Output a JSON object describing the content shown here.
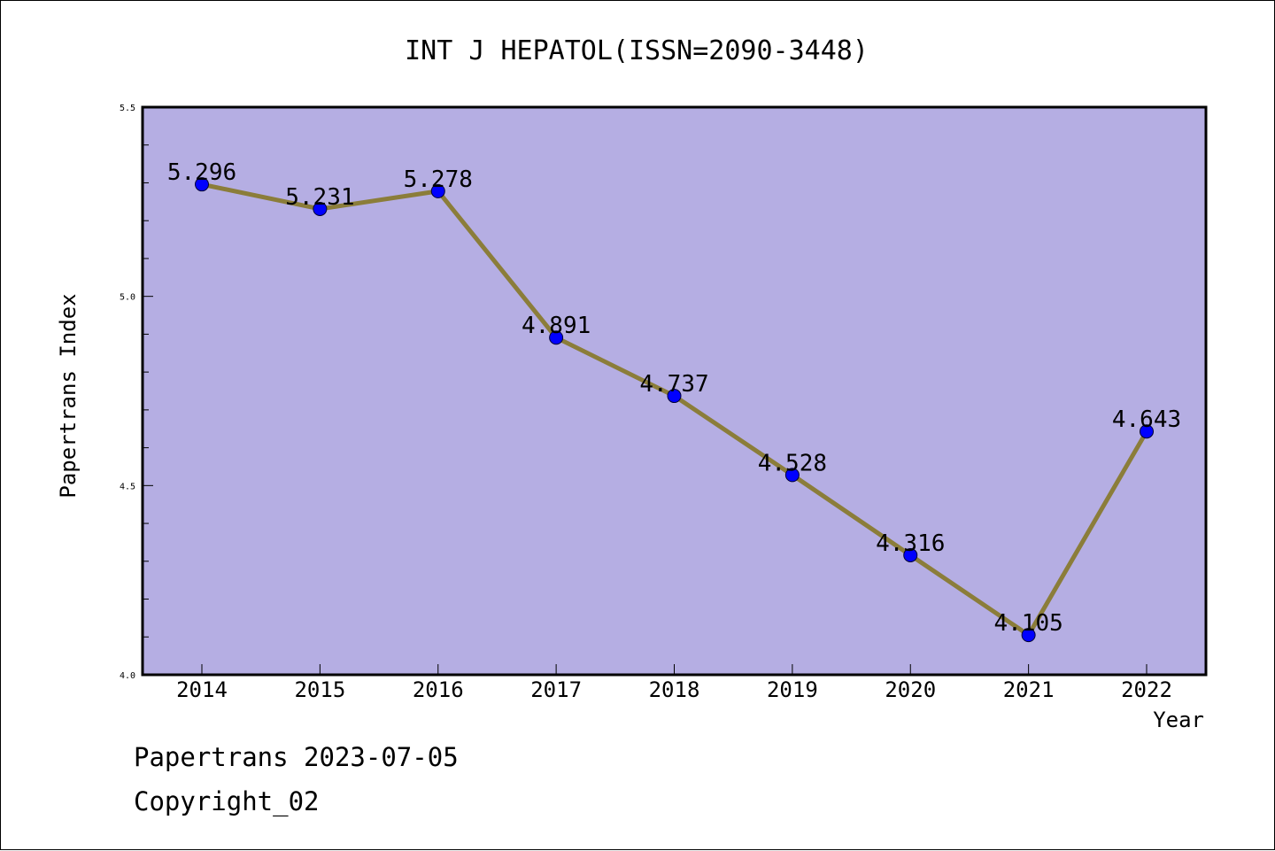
{
  "chart_data": {
    "type": "line",
    "title": "INT J HEPATOL(ISSN=2090-3448)",
    "xlabel": "Year",
    "ylabel": "Papertrans Index",
    "categories": [
      "2014",
      "2015",
      "2016",
      "2017",
      "2018",
      "2019",
      "2020",
      "2021",
      "2022"
    ],
    "series": [
      {
        "values": [
          5.296,
          5.231,
          5.278,
          4.891,
          4.737,
          4.528,
          4.316,
          4.105,
          4.643
        ],
        "labels": [
          "5.296",
          "5.231",
          "5.278",
          "4.891",
          "4.737",
          "4.528",
          "4.316",
          "4.105",
          "4.643"
        ],
        "line_color": "#8b7d3a",
        "marker_color": "#0000ff"
      }
    ],
    "ylim": [
      4.0,
      5.5
    ],
    "yticks": [
      "4.0",
      "4.5",
      "5.0",
      "5.5"
    ],
    "plot_background": "#b5aee3",
    "grid": false,
    "legend": "none"
  },
  "footer": {
    "line1": "Papertrans 2023-07-05",
    "line2": "Copyright_02"
  }
}
